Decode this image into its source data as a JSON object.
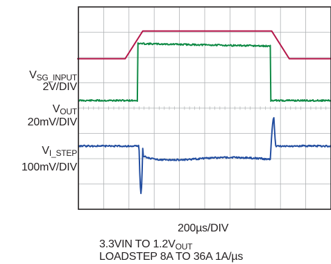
{
  "chart_data": {
    "type": "line",
    "title": "",
    "xlabel": "200µs/DIV",
    "ylabel": "",
    "grid": true,
    "x_divisions": 10,
    "y_divisions": 8,
    "x_unit": "div",
    "xlim": [
      0,
      10
    ],
    "ylim": [
      0,
      8
    ],
    "colors": {
      "vsg_input": "#b5174a",
      "vout": "#0f8a45",
      "vi_step": "#234ea0"
    },
    "channels": [
      {
        "id": "vsg_input",
        "label_main": "V",
        "label_sub": "SG_INPUT",
        "scale": "2V/DIV",
        "baseline_div": 5.95,
        "high_div": 7.05,
        "rise_start_div": 1.85,
        "rise_end_div": 2.55,
        "fall_start_div": 7.65,
        "fall_end_div": 8.35
      },
      {
        "id": "vout",
        "label_main": "V",
        "label_sub": "OUT",
        "scale": "20mV/DIV",
        "baseline_div": 4.3,
        "high_div": 6.55,
        "step_up_div": 2.35,
        "step_down_div": 7.6
      },
      {
        "id": "vi_step",
        "label_main": "V",
        "label_sub": "I_STEP",
        "scale": "100mV/DIV",
        "baseline_div": 2.5,
        "high_div": 2.0,
        "rise_div": 2.4,
        "fall_div": 7.6,
        "undershoot_div": 0.65,
        "overshoot_div": 3.65
      }
    ],
    "notes": {
      "line1_main": "3.3VIN TO 1.2V",
      "line1_sub": "OUT",
      "line2": "LOADSTEP 8A TO 36A 1A/µs"
    }
  }
}
